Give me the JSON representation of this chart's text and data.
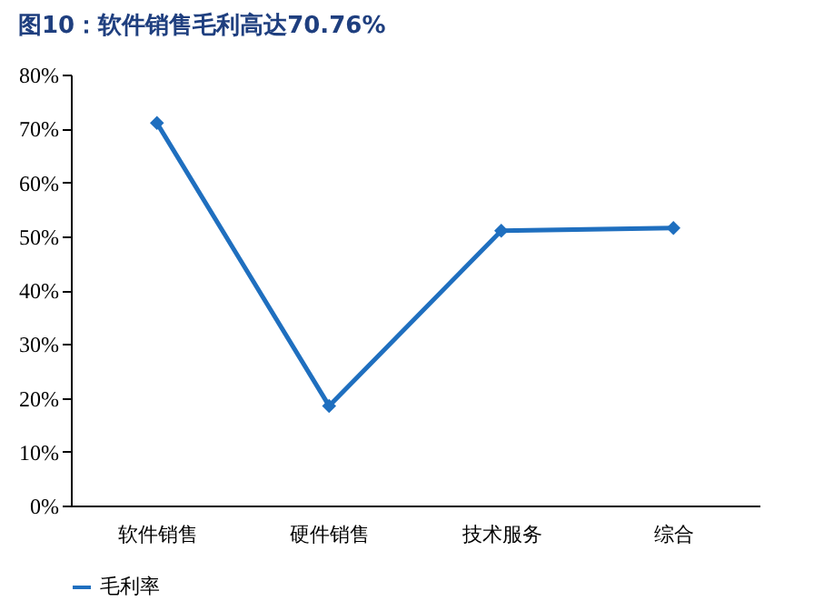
{
  "chart_data": {
    "type": "line",
    "title": "图10：软件销售毛利高达70.76%",
    "categories": [
      "软件销售",
      "硬件销售",
      "技术服务",
      "综合"
    ],
    "series": [
      {
        "name": "毛利率",
        "color": "#1f6fbf",
        "values": [
          71,
          18.5,
          51,
          51.5
        ]
      }
    ],
    "ylim": [
      0,
      80
    ],
    "yticks": [
      {
        "value": 0,
        "label": "0%"
      },
      {
        "value": 10,
        "label": "10%"
      },
      {
        "value": 20,
        "label": "20%"
      },
      {
        "value": 30,
        "label": "30%"
      },
      {
        "value": 40,
        "label": "40%"
      },
      {
        "value": 50,
        "label": "50%"
      },
      {
        "value": 60,
        "label": "60%"
      },
      {
        "value": 70,
        "label": "70%"
      },
      {
        "value": 80,
        "label": "80%"
      }
    ],
    "marker": "diamond",
    "legend": "bottom",
    "grid": false,
    "line_style": "solid"
  }
}
